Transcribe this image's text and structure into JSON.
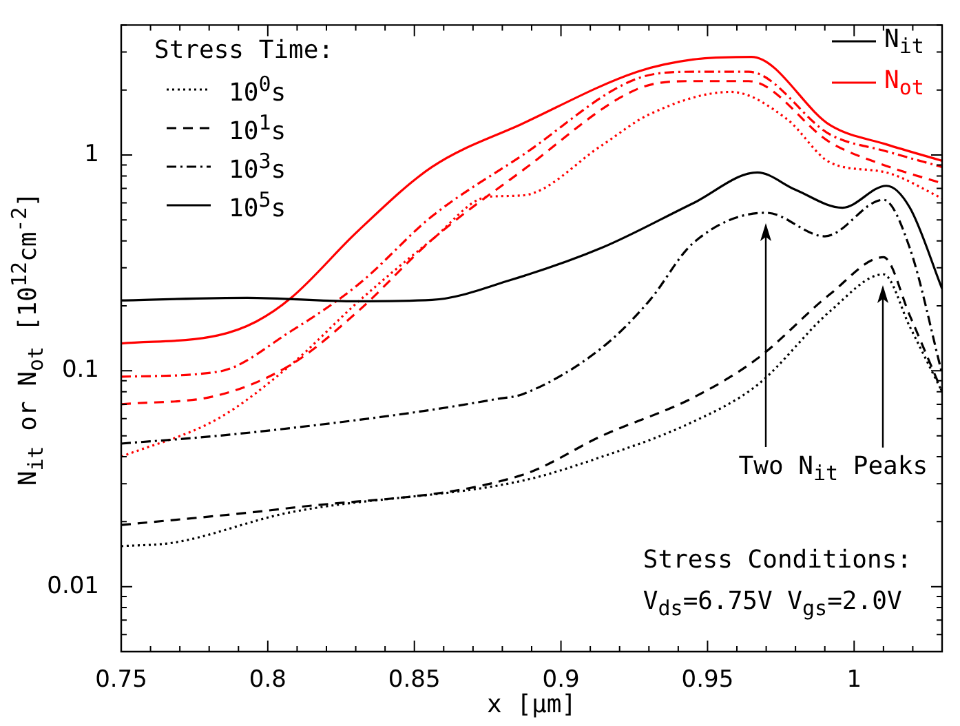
{
  "chart_data": {
    "type": "line",
    "xlabel": "x [μm]",
    "ylabel": "N$_{it}$ or N$_{ot}$ [10$^{12}$cm$^{-2}$]",
    "legend_title": "Stress Time:",
    "legend": "top left",
    "log": "y",
    "grid": false,
    "marker": "none",
    "xlim": [
      0.75,
      1.03
    ],
    "ylim": [
      0.005,
      4
    ],
    "xticks": [
      0.75,
      {
        "value": 0.76,
        "label": null
      },
      {
        "value": 0.77,
        "label": null
      },
      {
        "value": 0.78,
        "label": null
      },
      {
        "value": 0.79,
        "label": null
      },
      0.8,
      {
        "value": 0.81,
        "label": null
      },
      {
        "value": 0.82,
        "label": null
      },
      {
        "value": 0.83,
        "label": null
      },
      {
        "value": 0.84,
        "label": null
      },
      0.85,
      {
        "value": 0.86,
        "label": null
      },
      {
        "value": 0.87,
        "label": null
      },
      {
        "value": 0.88,
        "label": null
      },
      {
        "value": 0.89,
        "label": null
      },
      0.9,
      {
        "value": 0.91,
        "label": null
      },
      {
        "value": 0.92,
        "label": null
      },
      {
        "value": 0.93,
        "label": null
      },
      {
        "value": 0.94,
        "label": null
      },
      0.95,
      {
        "value": 0.96,
        "label": null
      },
      {
        "value": 0.97,
        "label": null
      },
      {
        "value": 0.98,
        "label": null
      },
      {
        "value": 0.99,
        "label": null
      },
      1,
      {
        "value": 1.01,
        "label": null
      },
      {
        "value": 1.02,
        "label": null
      }
    ],
    "yticks": [
      {
        "value": 0.005,
        "label": null
      },
      {
        "value": 0.006,
        "label": null
      },
      {
        "value": 0.007,
        "label": null
      },
      {
        "value": 0.008,
        "label": null
      },
      {
        "value": 0.009,
        "label": null
      },
      0.01,
      {
        "value": 0.02,
        "label": null
      },
      {
        "value": 0.03,
        "label": null
      },
      {
        "value": 0.04,
        "label": null
      },
      {
        "value": 0.05,
        "label": null
      },
      {
        "value": 0.06,
        "label": null
      },
      {
        "value": 0.07,
        "label": null
      },
      {
        "value": 0.08,
        "label": null
      },
      {
        "value": 0.09,
        "label": null
      },
      0.1,
      {
        "value": 0.2,
        "label": null
      },
      {
        "value": 0.3,
        "label": null
      },
      {
        "value": 0.4,
        "label": null
      },
      {
        "value": 0.5,
        "label": null
      },
      {
        "value": 0.6,
        "label": null
      },
      {
        "value": 0.7,
        "label": null
      },
      {
        "value": 0.8,
        "label": null
      },
      {
        "value": 0.9,
        "label": null
      },
      1,
      {
        "value": 2,
        "label": null
      },
      {
        "value": 3,
        "label": null
      },
      {
        "value": 4,
        "label": null
      }
    ],
    "annotations": [
      "N$_{it}$",
      "N$_{ot}$",
      "Two N$_{it}$ Peaks",
      "Stress Conditions:",
      "V$_{ds}$=6.75V V$_{gs}$=2.0V"
    ],
    "series": [
      {
        "name": "10$^{0}$s",
        "color": "#000000",
        "line_style": "dotted",
        "x": [
          0.75,
          0.768,
          0.807,
          0.887,
          0.914,
          0.945,
          0.967,
          0.992,
          1.01,
          1.019,
          1.03
        ],
        "values": [
          0.0154,
          0.016,
          0.022,
          0.031,
          0.04,
          0.058,
          0.086,
          0.19,
          0.28,
          0.16,
          0.08
        ]
      },
      {
        "name": "10$^{1}$s",
        "color": "#000000",
        "line_style": "dashed",
        "x": [
          0.75,
          0.807,
          0.887,
          0.914,
          0.945,
          0.967,
          0.992,
          1.01,
          1.019,
          1.03
        ],
        "values": [
          0.0193,
          0.0231,
          0.033,
          0.05,
          0.075,
          0.114,
          0.228,
          0.336,
          0.18,
          0.08
        ]
      },
      {
        "name": "10$^{3}$s",
        "color": "#000000",
        "line_style": "dashdot",
        "x": [
          0.75,
          0.783,
          0.821,
          0.856,
          0.878,
          0.887,
          0.914,
          0.93,
          0.945,
          0.97,
          0.99,
          1.01,
          1.019,
          1.03
        ],
        "values": [
          0.046,
          0.05,
          0.057,
          0.066,
          0.074,
          0.078,
          0.128,
          0.21,
          0.39,
          0.54,
          0.42,
          0.62,
          0.37,
          0.097
        ]
      },
      {
        "name": "10$^{5}$s",
        "color": "#000000",
        "line_style": "solid",
        "x": [
          0.75,
          0.793,
          0.83,
          0.856,
          0.883,
          0.914,
          0.945,
          0.967,
          0.98,
          0.996,
          1.011,
          1.019,
          1.03
        ],
        "values": [
          0.212,
          0.218,
          0.21,
          0.213,
          0.264,
          0.372,
          0.597,
          0.83,
          0.69,
          0.57,
          0.72,
          0.57,
          0.24
        ]
      },
      {
        "color": "#ff0000",
        "line_style": "dotted",
        "x": [
          0.75,
          0.783,
          0.808,
          0.831,
          0.856,
          0.875,
          0.887,
          0.914,
          0.93,
          0.958,
          0.977,
          0.992,
          1.011,
          1.03
        ],
        "values": [
          0.04,
          0.06,
          0.107,
          0.21,
          0.405,
          0.64,
          0.65,
          1.11,
          1.54,
          1.96,
          1.47,
          0.92,
          0.83,
          0.63
        ]
      },
      {
        "color": "#ff0000",
        "line_style": "dashed",
        "x": [
          0.75,
          0.783,
          0.808,
          0.831,
          0.856,
          0.887,
          0.926,
          0.945,
          0.964,
          0.992,
          1.011,
          1.03
        ],
        "values": [
          0.07,
          0.077,
          0.107,
          0.19,
          0.405,
          0.85,
          2.02,
          2.2,
          2.2,
          1.14,
          0.89,
          0.74
        ]
      },
      {
        "color": "#ff0000",
        "line_style": "dashdot",
        "x": [
          0.75,
          0.783,
          0.808,
          0.831,
          0.856,
          0.887,
          0.926,
          0.945,
          0.964,
          0.992,
          1.011,
          1.03
        ],
        "values": [
          0.094,
          0.099,
          0.153,
          0.252,
          0.52,
          1.0,
          2.26,
          2.43,
          2.43,
          1.24,
          1.04,
          0.88
        ]
      },
      {
        "color": "#ff0000",
        "line_style": "solid",
        "x": [
          0.75,
          0.783,
          0.796,
          0.808,
          0.831,
          0.856,
          0.887,
          0.926,
          0.945,
          0.965,
          0.992,
          1.011,
          1.03
        ],
        "values": [
          0.134,
          0.146,
          0.169,
          0.218,
          0.448,
          0.88,
          1.4,
          2.43,
          2.77,
          2.85,
          1.37,
          1.12,
          0.94
        ]
      }
    ]
  }
}
